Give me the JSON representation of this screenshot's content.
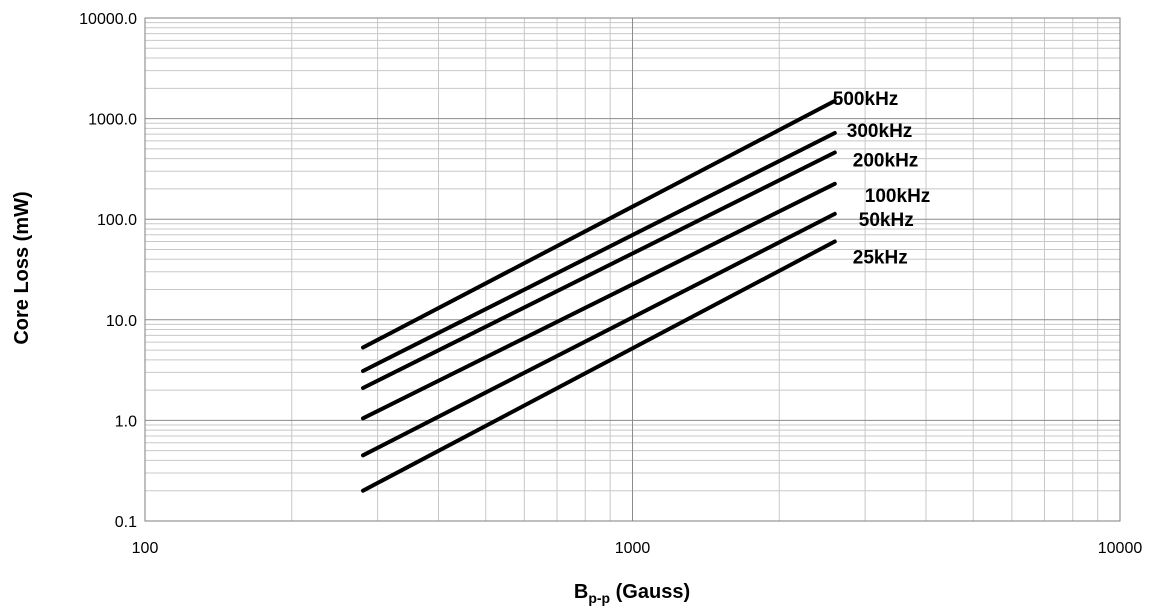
{
  "chart_data": {
    "type": "line",
    "x_scale": "log",
    "y_scale": "log",
    "xlim": [
      100,
      10000
    ],
    "ylim": [
      0.1,
      10000
    ],
    "x_ticks": [
      "100",
      "1000",
      "10000"
    ],
    "y_ticks": [
      "0.1",
      "1.0",
      "10.0",
      "100.0",
      "1000.0",
      "10000.0"
    ],
    "xlabel": {
      "main": "B",
      "sub": "p-p",
      "rest": " (Gauss)"
    },
    "ylabel": "Core Loss (mW)",
    "grid": "major and minor",
    "line_color": "#000000",
    "series": [
      {
        "name": "500kHz",
        "x": [
          280,
          2600
        ],
        "y": [
          5.3,
          1500
        ]
      },
      {
        "name": "300kHz",
        "x": [
          280,
          2600
        ],
        "y": [
          3.1,
          720
        ]
      },
      {
        "name": "200kHz",
        "x": [
          280,
          2600
        ],
        "y": [
          2.1,
          460
        ]
      },
      {
        "name": "100kHz",
        "x": [
          280,
          2600
        ],
        "y": [
          1.05,
          225
        ]
      },
      {
        "name": "50kHz",
        "x": [
          280,
          2600
        ],
        "y": [
          0.45,
          113
        ]
      },
      {
        "name": "25kHz",
        "x": [
          280,
          2600
        ],
        "y": [
          0.2,
          60
        ]
      }
    ]
  }
}
